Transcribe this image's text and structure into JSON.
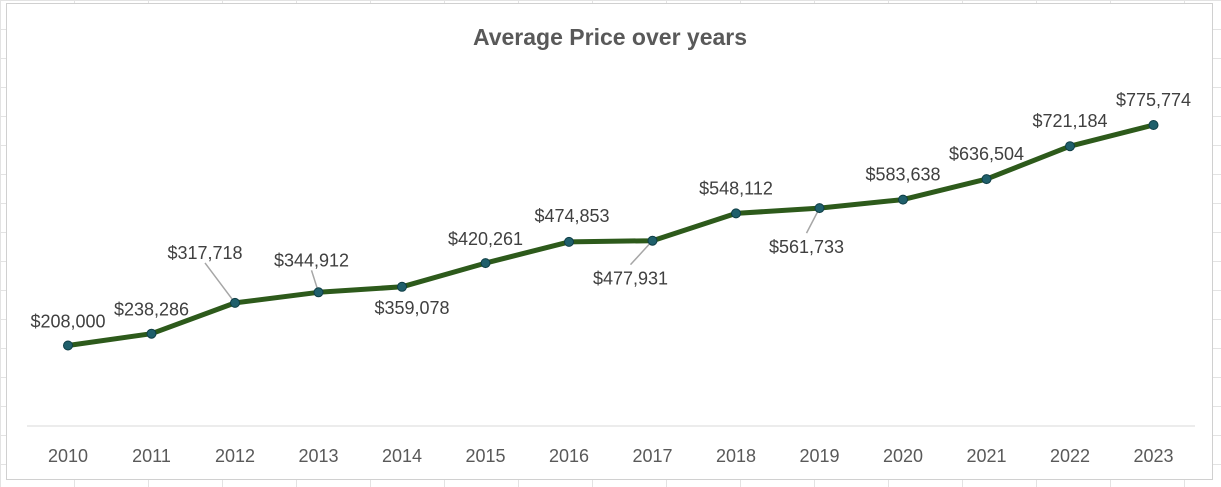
{
  "chart_data": {
    "type": "line",
    "title": "Average Price over years",
    "xlabel": "",
    "ylabel": "",
    "categories": [
      "2010",
      "2011",
      "2012",
      "2013",
      "2014",
      "2015",
      "2016",
      "2017",
      "2018",
      "2019",
      "2020",
      "2021",
      "2022",
      "2023"
    ],
    "series": [
      {
        "values": [
          208000,
          238286,
          317718,
          344912,
          359078,
          420261,
          474853,
          477931,
          548112,
          561733,
          583638,
          636504,
          721184,
          775774
        ],
        "labels": [
          "$208,000",
          "$238,286",
          "$317,718",
          "$344,912",
          "$359,078",
          "$420,261",
          "$474,853",
          "$477,931",
          "$548,112",
          "$561,733",
          "$583,638",
          "$636,504",
          "$721,184",
          "$775,774"
        ],
        "color": "#2d5a1b",
        "marker_color": "#1f5f6b"
      }
    ],
    "legend": "none",
    "gridlines": false
  }
}
